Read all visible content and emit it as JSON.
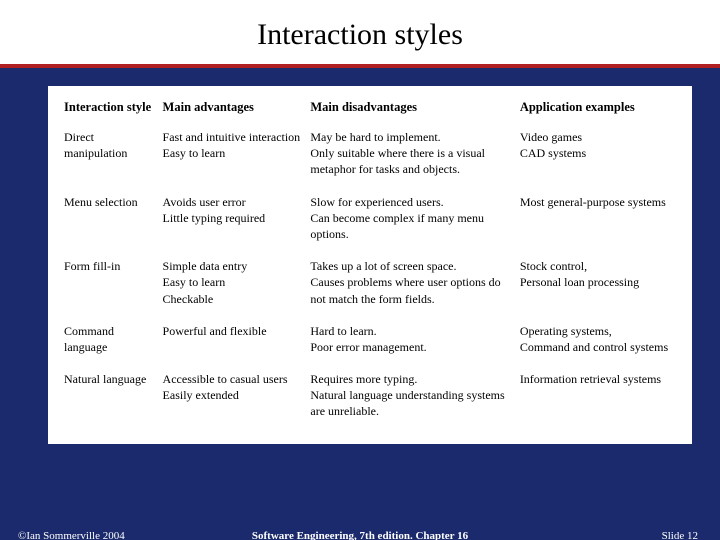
{
  "slide": {
    "title": "Interaction styles",
    "background_color": "#1a2a6c",
    "accent_rule_color": "#b02020",
    "content_bg": "#ffffff",
    "title_fontsize": 30,
    "body_fontsize": 12
  },
  "table": {
    "columns": [
      {
        "label": "Interaction style",
        "width_pct": 16
      },
      {
        "label": "Main advantages",
        "width_pct": 24
      },
      {
        "label": "Main disadvantages",
        "width_pct": 34
      },
      {
        "label": "Application examples",
        "width_pct": 26
      }
    ],
    "rows": [
      {
        "c0": "Direct manipulation",
        "c1": "Fast and intuitive interaction\nEasy to learn",
        "c2": "May be hard to implement.\nOnly suitable where there is a visual metaphor for tasks and objects.",
        "c3": "Video games\nCAD systems"
      },
      {
        "c0": "Menu selection",
        "c1": "Avoids user error\nLittle typing required",
        "c2": "Slow for experienced users.\nCan become complex if many menu options.",
        "c3": "Most general-purpose systems"
      },
      {
        "c0": "Form fill-in",
        "c1": "Simple data entry\nEasy to learn\nCheckable",
        "c2": "Takes up a lot of screen space.\nCauses problems where user options do not match the form fields.",
        "c3": "Stock control,\nPersonal loan processing"
      },
      {
        "c0": "Command language",
        "c1": "Powerful and flexible",
        "c2": "Hard to learn.\nPoor error management.",
        "c3": "Operating systems,\nCommand and control systems"
      },
      {
        "c0": "Natural language",
        "c1": "Accessible to casual users\nEasily extended",
        "c2": "Requires more typing.\nNatural language understanding systems are unreliable.",
        "c3": "Information retrieval systems"
      }
    ]
  },
  "footer": {
    "left": "©Ian Sommerville 2004",
    "center": "Software Engineering, 7th edition. Chapter 16",
    "right": "Slide 12"
  }
}
